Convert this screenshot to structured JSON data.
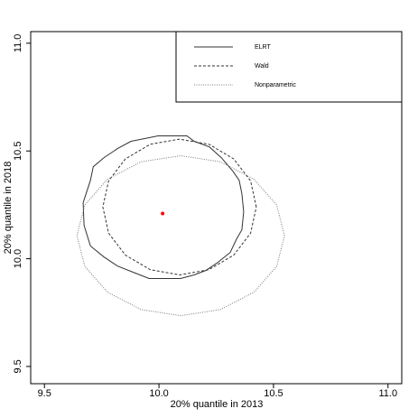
{
  "chart_data": {
    "type": "contour",
    "x_label": "20% quantile in 2013",
    "y_label": "20% quantile in 2018",
    "xlim": [
      9.44,
      11.06
    ],
    "ylim": [
      9.42,
      11.054
    ],
    "xticks": [
      9.5,
      {
        "value": 10,
        "label": "10.0"
      },
      10.5,
      {
        "value": 11,
        "label": "11.0"
      }
    ],
    "yticks": [
      9.5,
      {
        "value": 10,
        "label": "10.0"
      },
      10.5,
      {
        "value": 11,
        "label": "11.0"
      }
    ],
    "legend": "top-right",
    "series": [
      {
        "name": "ELRT",
        "color": "#333333",
        "line_style": "solid",
        "x": [
          9.878,
          9.996,
          10.122,
          10.154,
          10.22,
          10.272,
          10.323,
          10.35,
          10.362,
          10.37,
          10.362,
          10.339,
          10.311,
          10.252,
          10.205,
          10.154,
          10.094,
          9.957,
          9.898,
          9.819,
          9.76,
          9.701,
          9.673,
          9.669,
          9.701,
          9.713,
          9.76,
          9.819,
          9.878
        ],
        "y": [
          10.545,
          10.57,
          10.57,
          10.545,
          10.519,
          10.469,
          10.406,
          10.364,
          10.302,
          10.218,
          10.134,
          10.092,
          10.029,
          9.979,
          9.946,
          9.925,
          9.908,
          9.908,
          9.933,
          9.966,
          10.008,
          10.059,
          10.155,
          10.26,
          10.364,
          10.427,
          10.469,
          10.511,
          10.545
        ]
      },
      {
        "name": "Wald",
        "color": "#333333",
        "line_style": "dashed",
        "x": [
          10.425,
          10.4,
          10.327,
          10.218,
          10.09,
          9.962,
          9.853,
          9.78,
          9.755,
          9.78,
          9.853,
          9.962,
          10.09,
          10.218,
          10.327,
          10.4,
          10.425
        ],
        "y": [
          10.24,
          10.361,
          10.463,
          10.531,
          10.555,
          10.531,
          10.463,
          10.361,
          10.24,
          10.119,
          10.017,
          9.949,
          9.925,
          9.949,
          10.017,
          10.119,
          10.24
        ]
      },
      {
        "name": "Nonparametric",
        "color": "#777777",
        "line_style": "dotted",
        "x": [
          10.548,
          10.514,
          10.415,
          10.268,
          10.095,
          9.922,
          9.775,
          9.676,
          9.642,
          9.676,
          9.775,
          9.922,
          10.095,
          10.268,
          10.415,
          10.514,
          10.548
        ],
        "y": [
          10.107,
          10.249,
          10.369,
          10.45,
          10.478,
          10.45,
          10.369,
          10.249,
          10.107,
          9.965,
          9.845,
          9.764,
          9.736,
          9.764,
          9.845,
          9.965,
          10.107
        ]
      }
    ],
    "points": [
      {
        "x": 10.016,
        "y": 10.21,
        "color": "#ff0000"
      }
    ]
  }
}
